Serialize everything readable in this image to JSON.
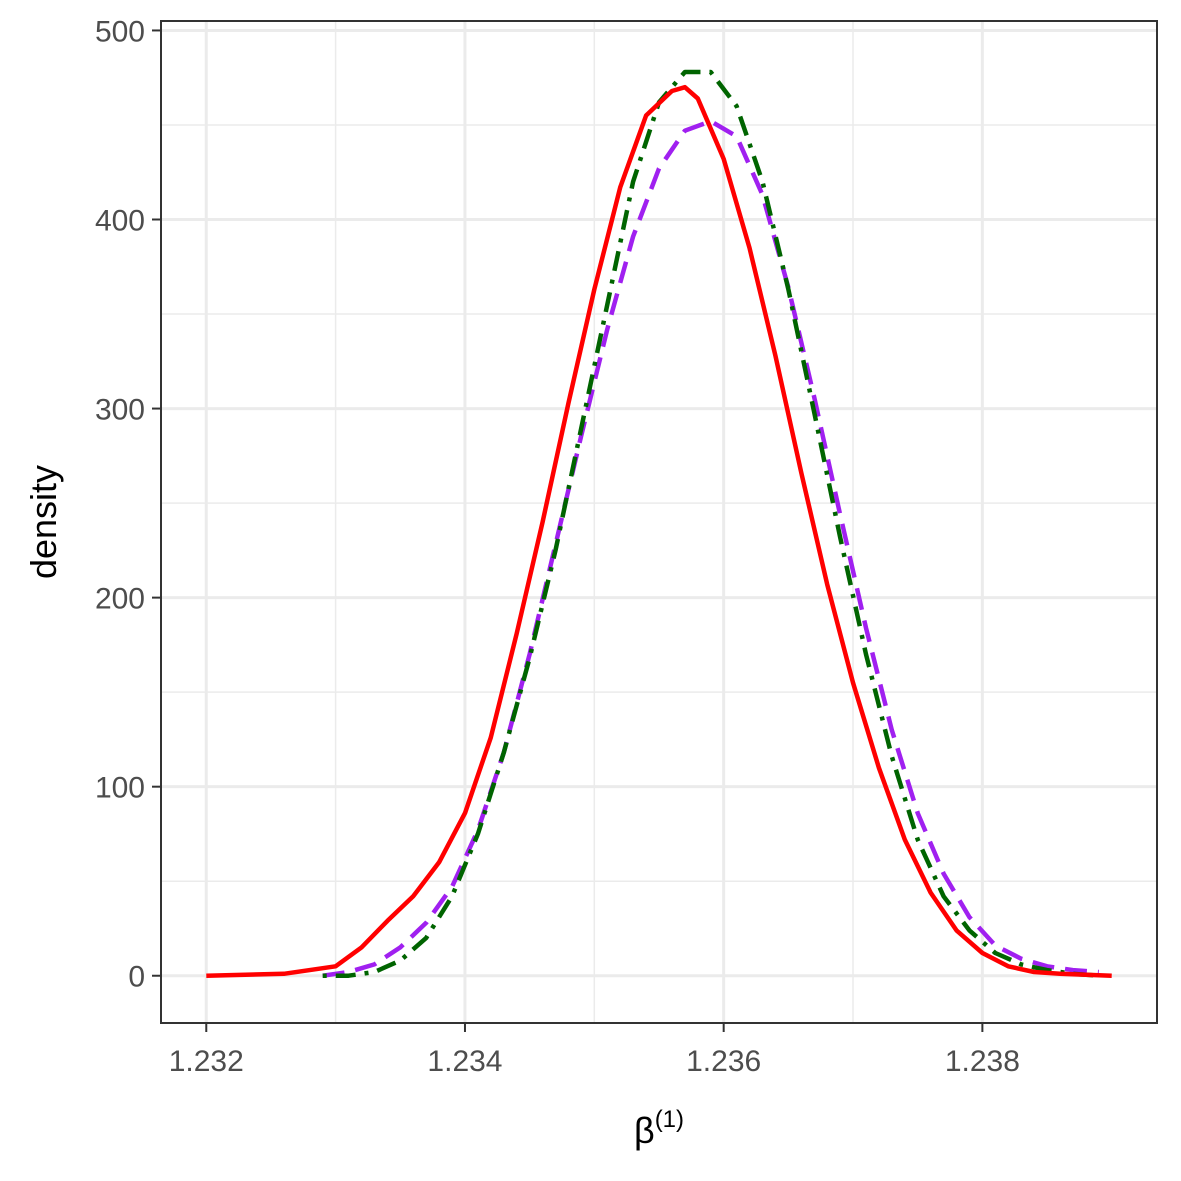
{
  "chart_data": {
    "type": "line",
    "title": "",
    "xlabel": "β",
    "xlabel_superscript": "(1)",
    "ylabel": "density",
    "xlim": [
      1.23165,
      1.23935
    ],
    "ylim": [
      -25,
      505
    ],
    "x_ticks": [
      1.232,
      1.234,
      1.236,
      1.238
    ],
    "x_tick_labels": [
      "1.232",
      "1.234",
      "1.236",
      "1.238"
    ],
    "y_ticks": [
      0,
      100,
      200,
      300,
      400,
      500
    ],
    "y_tick_labels": [
      "0",
      "100",
      "200",
      "300",
      "400",
      "500"
    ],
    "grid": true,
    "legend": "none",
    "series": [
      {
        "color": "#a020f0",
        "dash": "dashed",
        "x": [
          1.2329,
          1.2331,
          1.2333,
          1.2335,
          1.2337,
          1.2339,
          1.2341,
          1.2343,
          1.2345,
          1.2347,
          1.2349,
          1.2351,
          1.2353,
          1.2355,
          1.2357,
          1.2359,
          1.2361,
          1.2363,
          1.2365,
          1.2367,
          1.2369,
          1.2371,
          1.2373,
          1.2375,
          1.2377,
          1.2379,
          1.2381,
          1.2383,
          1.2385,
          1.2387,
          1.2389
        ],
        "y": [
          0,
          2,
          6,
          15,
          28,
          47,
          77,
          118,
          170,
          228,
          286,
          342,
          391,
          427,
          447,
          452,
          444,
          413,
          364,
          306,
          244,
          184,
          130,
          86,
          54,
          31,
          16,
          9,
          5,
          3,
          2
        ]
      },
      {
        "color": "#006400",
        "dash": "dotdash",
        "x": [
          1.2329,
          1.2331,
          1.2333,
          1.2335,
          1.2337,
          1.2339,
          1.2341,
          1.2343,
          1.2345,
          1.2347,
          1.2349,
          1.2351,
          1.2353,
          1.2355,
          1.2357,
          1.2359,
          1.2361,
          1.2363,
          1.2365,
          1.2367,
          1.2369,
          1.2371,
          1.2373,
          1.2375,
          1.2377,
          1.2379,
          1.2381,
          1.2383,
          1.2385,
          1.2387,
          1.2389
        ],
        "y": [
          0,
          0,
          2,
          8,
          20,
          42,
          75,
          118,
          168,
          225,
          290,
          355,
          420,
          462,
          478,
          478,
          460,
          420,
          363,
          298,
          232,
          170,
          116,
          72,
          42,
          24,
          12,
          6,
          3,
          1,
          0
        ]
      },
      {
        "color": "#ff0000",
        "dash": "solid",
        "x": [
          1.232,
          1.2326,
          1.233,
          1.2332,
          1.2334,
          1.2336,
          1.2338,
          1.234,
          1.2342,
          1.2344,
          1.2346,
          1.2348,
          1.235,
          1.2352,
          1.2354,
          1.2356,
          1.2357,
          1.2358,
          1.236,
          1.2362,
          1.2364,
          1.2366,
          1.2368,
          1.237,
          1.2372,
          1.2374,
          1.2376,
          1.2378,
          1.238,
          1.2382,
          1.2384,
          1.2386,
          1.239
        ],
        "y": [
          0,
          1,
          5,
          15,
          29,
          42,
          60,
          86,
          126,
          181,
          240,
          303,
          363,
          417,
          455,
          468,
          470,
          464,
          432,
          385,
          328,
          266,
          207,
          155,
          110,
          72,
          44,
          24,
          12,
          5,
          2,
          1,
          0
        ]
      }
    ]
  }
}
